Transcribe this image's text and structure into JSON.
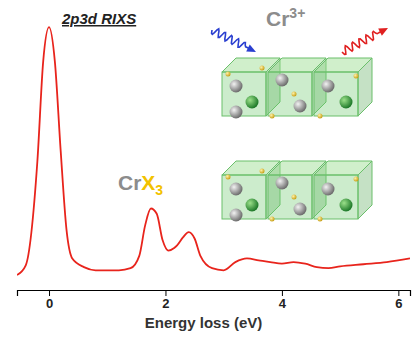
{
  "chart_data": {
    "type": "line",
    "title": "2p3d RIXS",
    "x_label": "Energy loss (eV)",
    "x": [
      -0.55,
      -0.4,
      -0.2,
      -0.1,
      0,
      0.1,
      0.2,
      0.3,
      0.4,
      0.6,
      0.8,
      1.0,
      1.2,
      1.4,
      1.55,
      1.65,
      1.75,
      1.85,
      1.95,
      2.05,
      2.15,
      2.2,
      2.3,
      2.4,
      2.5,
      2.6,
      2.8,
      3.0,
      3.2,
      3.4,
      3.6,
      3.8,
      4.0,
      4.2,
      4.4,
      4.6,
      4.8,
      5.0,
      5.4,
      5.8,
      6.2
    ],
    "values": [
      0.057,
      0.094,
      0.49,
      0.87,
      1.0,
      0.87,
      0.53,
      0.23,
      0.12,
      0.087,
      0.075,
      0.075,
      0.075,
      0.083,
      0.13,
      0.245,
      0.31,
      0.29,
      0.19,
      0.15,
      0.16,
      0.17,
      0.2,
      0.22,
      0.196,
      0.13,
      0.083,
      0.075,
      0.106,
      0.12,
      0.113,
      0.106,
      0.1,
      0.106,
      0.1,
      0.087,
      0.083,
      0.09,
      0.098,
      0.106,
      0.12
    ],
    "color": "#e8241c",
    "xlim": [
      -0.55,
      6.2
    ],
    "ylim": [
      0,
      1.05
    ],
    "xticks": [
      0,
      2,
      4,
      6
    ],
    "tick_labels": "x",
    "annotations": [
      {
        "text": "CrX3"
      },
      {
        "text": "Cr3+"
      }
    ]
  }
}
